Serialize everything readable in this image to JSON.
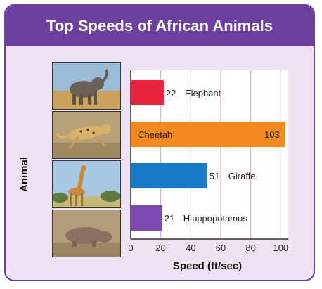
{
  "chart_data": {
    "type": "bar",
    "orientation": "horizontal",
    "title": "Top Speeds of African Animals",
    "xlabel": "Speed (ft/sec)",
    "ylabel": "Animal",
    "categories": [
      "Elephant",
      "Cheetah",
      "Giraffe",
      "Hippopotamus"
    ],
    "category_labels": [
      "Elephant",
      "Cheetah",
      "Giraffe",
      "Hipppopotamus"
    ],
    "values": [
      22,
      103,
      51,
      21
    ],
    "xlim": [
      0,
      105
    ],
    "xticks": [
      0,
      20,
      40,
      60,
      80,
      100
    ],
    "bar_colors": [
      "#e8243c",
      "#f28a1e",
      "#1a7ac8",
      "#7d4bb0"
    ],
    "grid": "vertical",
    "legend": "none"
  },
  "colors": {
    "accent": "#6a3fa0",
    "card_background": "#efe3f3"
  },
  "photos": [
    {
      "subject": "elephant-icon"
    },
    {
      "subject": "cheetah-icon"
    },
    {
      "subject": "giraffe-icon"
    },
    {
      "subject": "hippopotamus-icon"
    }
  ]
}
